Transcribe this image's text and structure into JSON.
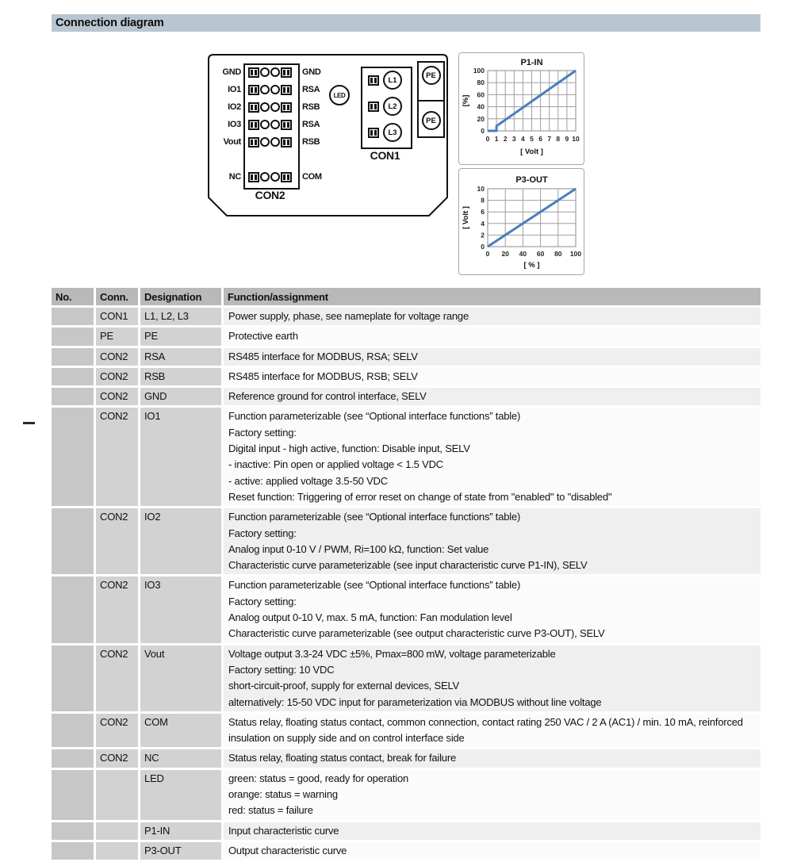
{
  "colors": {
    "title_bar_bg": "#b9c6d1",
    "header_bg": "#b9b9b9",
    "no_col_bg": "#c7c7c7",
    "label_col_bg": "#d2d2d2",
    "row_even_bg": "#efefef",
    "row_odd_bg": "#fbfbfb",
    "chart_line": "#4a7ebb",
    "chart_grid": "#9e9e9e",
    "diagram_stroke": "#111111"
  },
  "page": {
    "section_title": "Connection diagram"
  },
  "diagram": {
    "con2": {
      "label": "CON2",
      "rows": [
        {
          "left": "GND",
          "right": "GND"
        },
        {
          "left": "IO1",
          "right": "RSA"
        },
        {
          "left": "IO2",
          "right": "RSB"
        },
        {
          "left": "IO3",
          "right": "RSA"
        },
        {
          "left": "Vout",
          "right": "RSB"
        },
        {
          "left": "NC",
          "right": "COM"
        }
      ]
    },
    "led_label": "LED",
    "con1": {
      "label": "CON1",
      "phases": [
        "L1",
        "L2",
        "L3"
      ]
    },
    "pe_labels": [
      "PE",
      "PE"
    ]
  },
  "chart_data": [
    {
      "type": "line",
      "title": "P1-IN",
      "xlabel": "[ Volt ]",
      "ylabel": "[%]",
      "xlim": [
        0,
        10
      ],
      "ylim": [
        0,
        100
      ],
      "x_ticks": [
        0,
        1,
        2,
        3,
        4,
        5,
        6,
        7,
        8,
        9,
        10
      ],
      "y_ticks": [
        0,
        20,
        40,
        60,
        80,
        100
      ],
      "grid": true,
      "legend": "none",
      "series": [
        {
          "name": "P1-IN",
          "points": [
            [
              0,
              0
            ],
            [
              1,
              0
            ],
            [
              1,
              8
            ],
            [
              10,
              100
            ]
          ]
        }
      ]
    },
    {
      "type": "line",
      "title": "P3-OUT",
      "xlabel": "[ % ]",
      "ylabel": "[ Volt ]",
      "xlim": [
        0,
        100
      ],
      "ylim": [
        0,
        10
      ],
      "x_ticks": [
        0,
        20,
        40,
        60,
        80,
        100
      ],
      "y_ticks": [
        0,
        2,
        4,
        6,
        8,
        10
      ],
      "grid": true,
      "legend": "none",
      "series": [
        {
          "name": "P3-OUT",
          "points": [
            [
              0,
              0
            ],
            [
              100,
              10
            ]
          ]
        }
      ]
    }
  ],
  "table": {
    "headers": [
      "No.",
      "Conn.",
      "Designation",
      "Function/assignment"
    ],
    "rows": [
      {
        "no": "",
        "conn": "CON1",
        "designation": "L1, L2, L3",
        "function": [
          "Power supply, phase, see nameplate for voltage range"
        ]
      },
      {
        "no": "",
        "conn": "PE",
        "designation": "PE",
        "function": [
          "Protective earth"
        ]
      },
      {
        "no": "",
        "conn": "CON2",
        "designation": "RSA",
        "function": [
          "RS485 interface for MODBUS, RSA; SELV"
        ]
      },
      {
        "no": "",
        "conn": "CON2",
        "designation": "RSB",
        "function": [
          "RS485 interface for MODBUS, RSB; SELV"
        ]
      },
      {
        "no": "",
        "conn": "CON2",
        "designation": "GND",
        "function": [
          "Reference ground for control interface, SELV"
        ]
      },
      {
        "no": "",
        "conn": "CON2",
        "designation": "IO1",
        "function": [
          "Function parameterizable (see “Optional interface functions” table)",
          "Factory setting:",
          "Digital input - high active, function: Disable input, SELV",
          "- inactive: Pin open or applied voltage < 1.5 VDC",
          "- active: applied voltage 3.5-50 VDC",
          "Reset function: Triggering of error reset on change of state from \"enabled\" to \"disabled\""
        ]
      },
      {
        "no": "",
        "conn": "CON2",
        "designation": "IO2",
        "function": [
          "Function parameterizable (see “Optional interface functions” table)",
          "Factory setting:",
          "Analog input 0-10 V / PWM, Ri=100 kΩ, function: Set value",
          "Characteristic curve parameterizable (see input characteristic curve P1-IN), SELV"
        ]
      },
      {
        "no": "",
        "conn": "CON2",
        "designation": "IO3",
        "function": [
          "Function parameterizable (see “Optional interface functions” table)",
          "Factory setting:",
          "Analog output 0-10 V, max. 5 mA, function: Fan modulation level",
          "Characteristic curve parameterizable (see output characteristic curve P3-OUT), SELV"
        ]
      },
      {
        "no": "",
        "conn": "CON2",
        "designation": "Vout",
        "function": [
          "Voltage output 3.3-24 VDC ±5%, Pmax=800 mW, voltage parameterizable",
          "Factory setting: 10 VDC",
          "short-circuit-proof, supply for external devices, SELV",
          "alternatively: 15-50 VDC input for parameterization via MODBUS without line voltage"
        ]
      },
      {
        "no": "",
        "conn": "CON2",
        "designation": "COM",
        "function": [
          "Status relay, floating status contact, common connection, contact rating 250 VAC / 2 A (AC1) / min. 10 mA, reinforced insulation on supply side and on control interface side"
        ]
      },
      {
        "no": "",
        "conn": "CON2",
        "designation": "NC",
        "function": [
          "Status relay, floating status contact, break for failure"
        ]
      },
      {
        "no": "",
        "conn": "",
        "designation": "LED",
        "function": [
          "green: status = good, ready for operation",
          "orange: status = warning",
          "red: status = failure"
        ]
      },
      {
        "no": "",
        "conn": "",
        "designation": "P1-IN",
        "function": [
          "Input characteristic curve"
        ]
      },
      {
        "no": "",
        "conn": "",
        "designation": "P3-OUT",
        "function": [
          "Output characteristic curve"
        ]
      }
    ]
  }
}
